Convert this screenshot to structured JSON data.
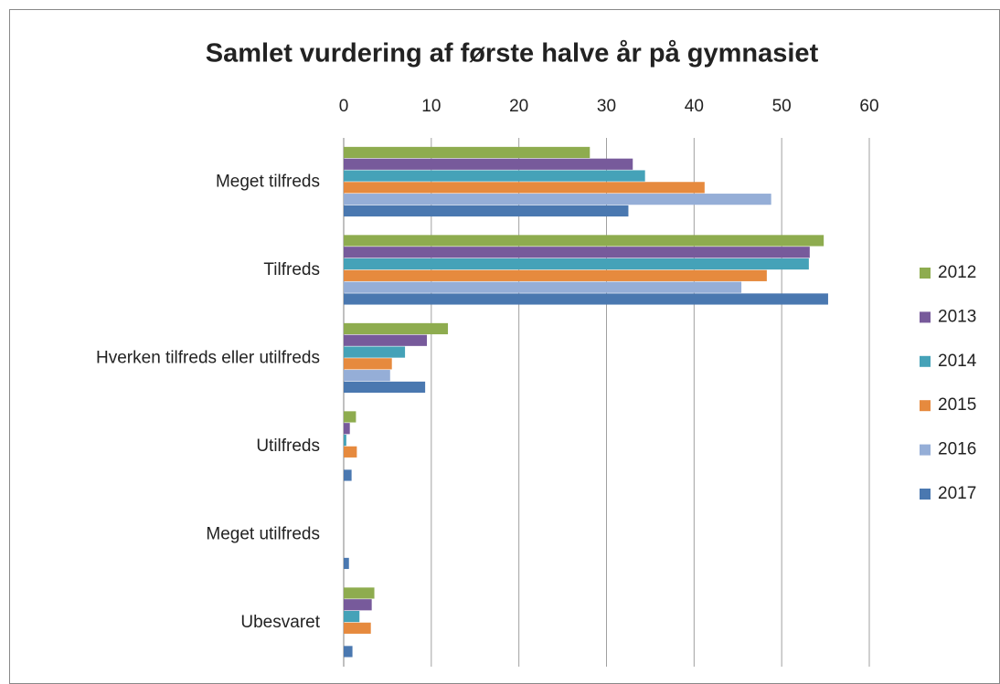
{
  "chart_data": {
    "type": "hbar",
    "title": "Samlet vurdering af første halve år på gymnasiet",
    "categories": [
      "Meget tilfreds",
      "Tilfreds",
      "Hverken tilfreds eller utilfreds",
      "Utilfreds",
      "Meget utilfreds",
      "Ubesvaret"
    ],
    "series": [
      {
        "name": "2012",
        "color": "#8eac4f",
        "values": [
          28.1,
          54.8,
          11.9,
          1.4,
          0,
          3.5
        ]
      },
      {
        "name": "2013",
        "color": "#775a9b",
        "values": [
          33.0,
          53.2,
          9.5,
          0.7,
          0,
          3.2
        ]
      },
      {
        "name": "2014",
        "color": "#45a2b8",
        "values": [
          34.4,
          53.1,
          7.0,
          0.3,
          0,
          1.8
        ]
      },
      {
        "name": "2015",
        "color": "#e68a3e",
        "values": [
          41.2,
          48.3,
          5.5,
          1.5,
          0,
          3.1
        ]
      },
      {
        "name": "2016",
        "color": "#95aed7",
        "values": [
          48.8,
          45.4,
          5.3,
          0,
          0,
          0
        ]
      },
      {
        "name": "2017",
        "color": "#4a78b0",
        "values": [
          32.5,
          55.3,
          9.3,
          0.9,
          0.6,
          1.0
        ]
      }
    ],
    "xlim": [
      0,
      60
    ],
    "xticks": [
      0,
      10,
      20,
      30,
      40,
      50,
      60
    ],
    "grid": true,
    "legend": "right"
  }
}
